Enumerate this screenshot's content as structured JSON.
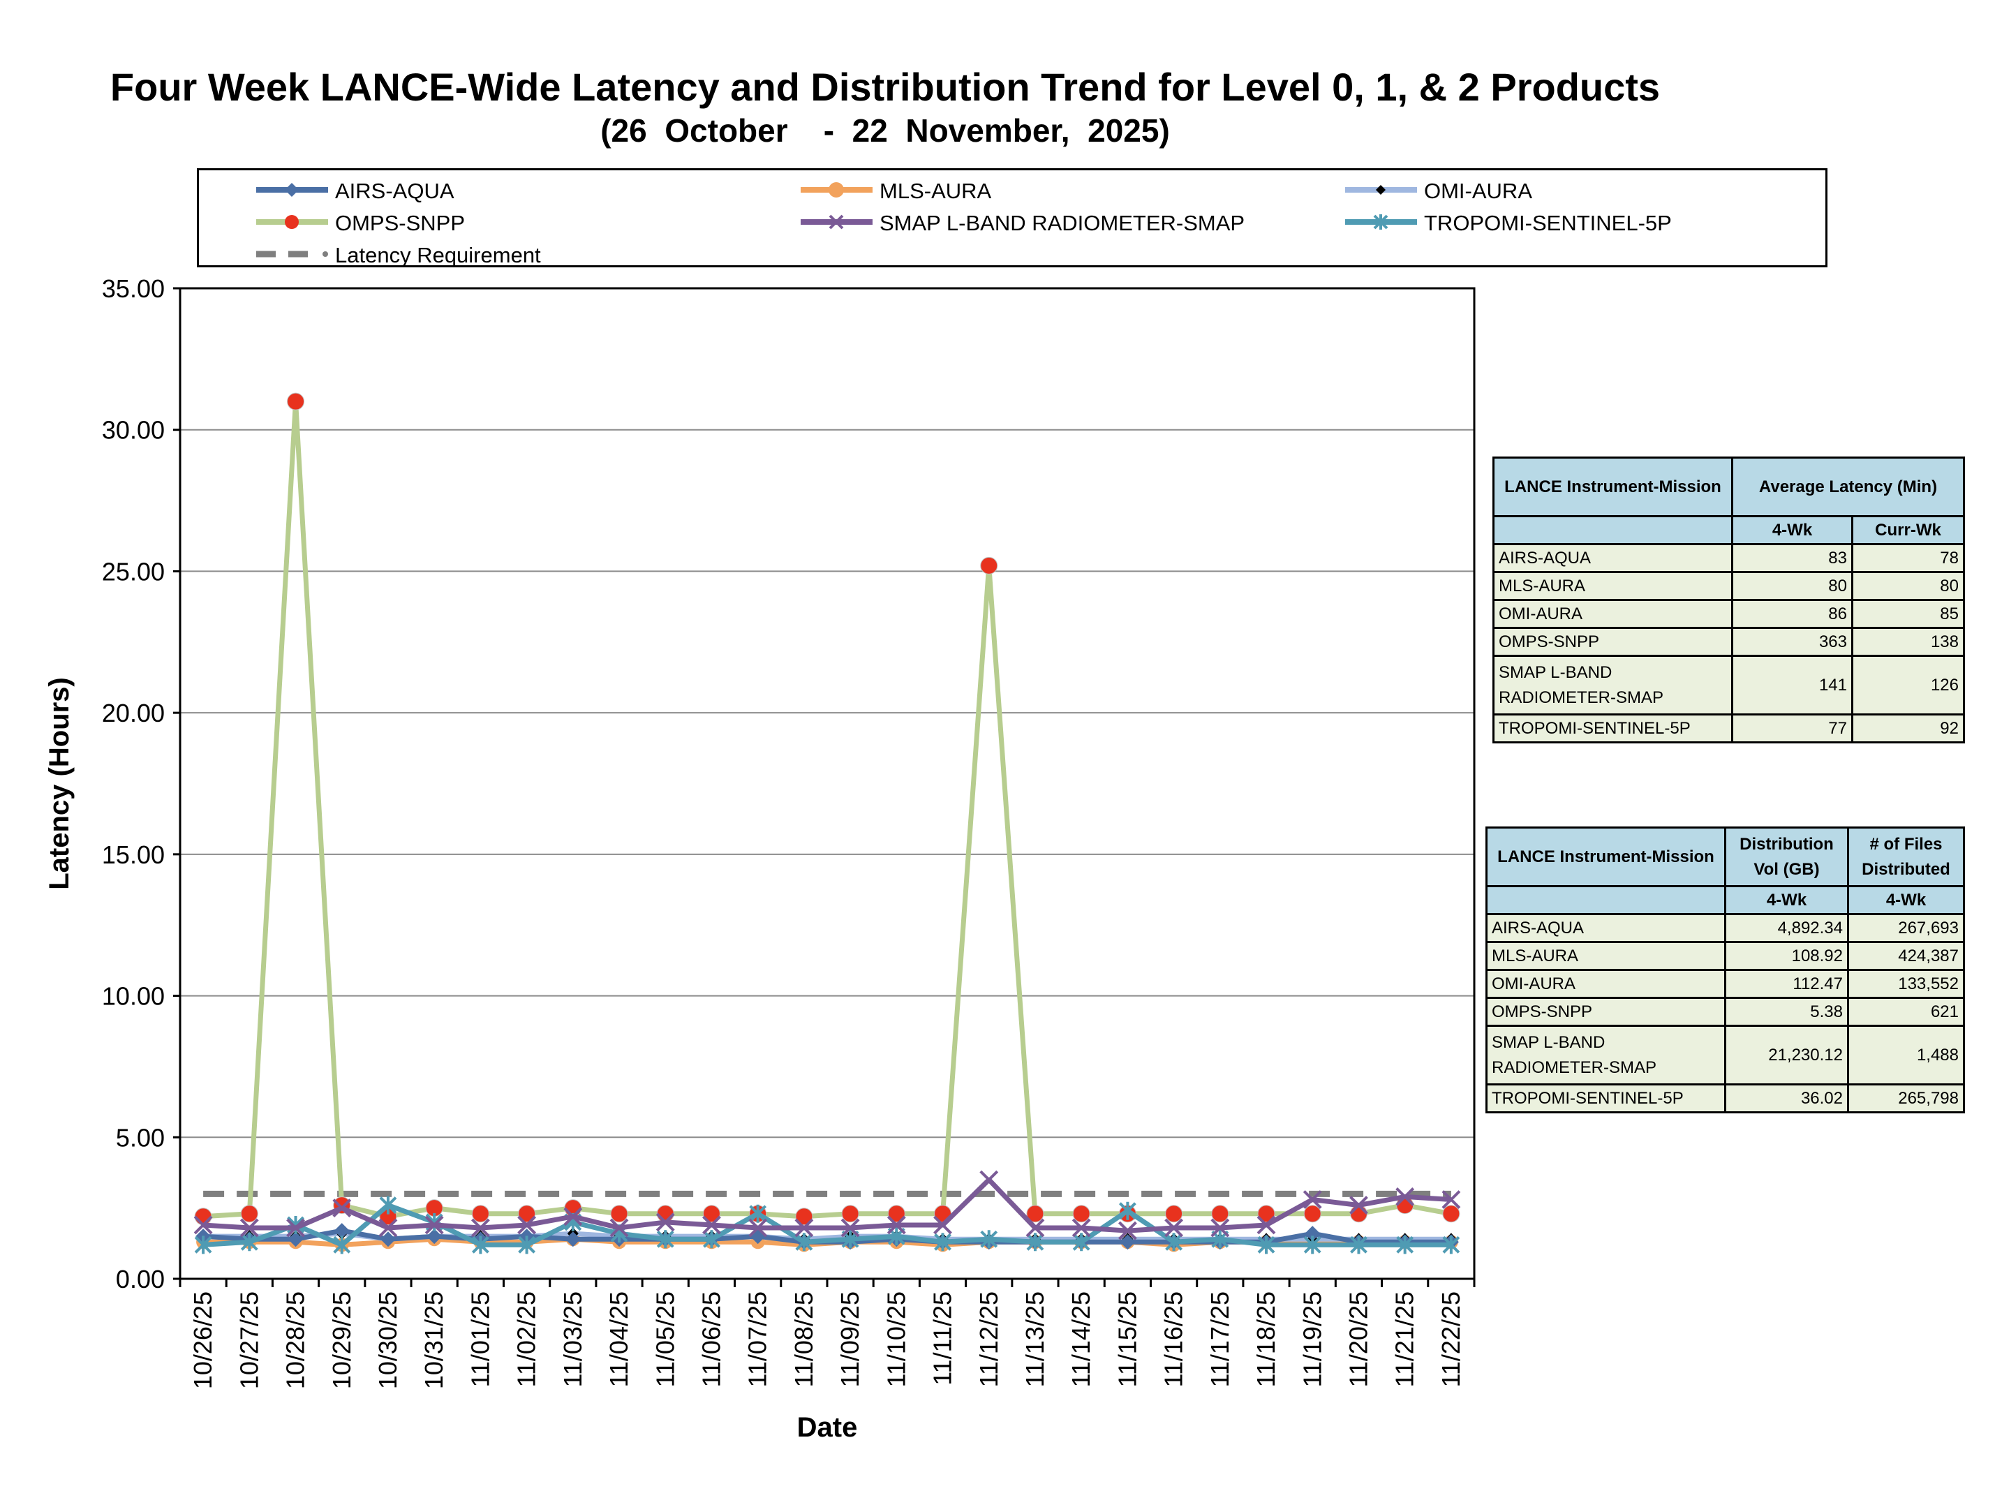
{
  "chart_data": {
    "type": "line",
    "title": "Four Week LANCE-Wide Latency and Distribution Trend for Level 0, 1, & 2 Products",
    "subtitle": "(26  October    -  22  November,  2025)",
    "xlabel": "Date",
    "ylabel": "Latency (Hours)",
    "ylim": [
      0,
      35
    ],
    "yticks": [
      "0.00",
      "5.00",
      "10.00",
      "15.00",
      "20.00",
      "25.00",
      "30.00",
      "35.00"
    ],
    "grid": "horizontal",
    "legend_placement": "top",
    "categories": [
      "10/26/25",
      "10/27/25",
      "10/28/25",
      "10/29/25",
      "10/30/25",
      "10/31/25",
      "11/01/25",
      "11/02/25",
      "11/03/25",
      "11/04/25",
      "11/05/25",
      "11/06/25",
      "11/07/25",
      "11/08/25",
      "11/09/25",
      "11/10/25",
      "11/11/25",
      "11/12/25",
      "11/13/25",
      "11/14/25",
      "11/15/25",
      "11/16/25",
      "11/17/25",
      "11/18/25",
      "11/19/25",
      "11/20/25",
      "11/21/25",
      "11/22/25"
    ],
    "series": [
      {
        "name": "AIRS-AQUA",
        "color": "#4a6fa5",
        "marker": "diamond",
        "values": [
          1.5,
          1.4,
          1.4,
          1.7,
          1.4,
          1.5,
          1.4,
          1.5,
          1.4,
          1.4,
          1.4,
          1.4,
          1.5,
          1.3,
          1.3,
          1.4,
          1.3,
          1.3,
          1.3,
          1.3,
          1.3,
          1.3,
          1.3,
          1.3,
          1.6,
          1.3,
          1.3,
          1.3
        ]
      },
      {
        "name": "MLS-AURA",
        "color": "#f2a25c",
        "marker": "circle",
        "values": [
          1.3,
          1.3,
          1.3,
          1.2,
          1.3,
          1.4,
          1.3,
          1.3,
          1.4,
          1.3,
          1.3,
          1.3,
          1.3,
          1.2,
          1.3,
          1.3,
          1.2,
          1.3,
          1.3,
          1.3,
          1.3,
          1.2,
          1.3,
          1.3,
          1.3,
          1.3,
          1.3,
          1.3
        ]
      },
      {
        "name": "OMI-AURA",
        "color": "#9fb7e0",
        "marker": "diamond-small",
        "values": [
          1.5,
          1.5,
          1.5,
          1.6,
          1.4,
          1.5,
          1.5,
          1.5,
          1.6,
          1.5,
          1.5,
          1.5,
          1.5,
          1.4,
          1.5,
          1.5,
          1.4,
          1.4,
          1.4,
          1.4,
          1.4,
          1.4,
          1.4,
          1.4,
          1.4,
          1.4,
          1.4,
          1.4
        ]
      },
      {
        "name": "OMPS-SNPP",
        "color": "#b7cd8f",
        "marker": "red-dot",
        "values": [
          2.2,
          2.3,
          31.0,
          2.6,
          2.2,
          2.5,
          2.3,
          2.3,
          2.5,
          2.3,
          2.3,
          2.3,
          2.3,
          2.2,
          2.3,
          2.3,
          2.3,
          25.2,
          2.3,
          2.3,
          2.3,
          2.3,
          2.3,
          2.3,
          2.3,
          2.3,
          2.6,
          2.3
        ]
      },
      {
        "name": "SMAP L-BAND RADIOMETER-SMAP",
        "color": "#7a5a96",
        "marker": "x",
        "values": [
          1.9,
          1.8,
          1.8,
          2.5,
          1.8,
          1.9,
          1.8,
          1.9,
          2.2,
          1.8,
          2.0,
          1.9,
          1.8,
          1.8,
          1.8,
          1.9,
          1.9,
          3.5,
          1.8,
          1.8,
          1.7,
          1.8,
          1.8,
          1.9,
          2.8,
          2.6,
          2.9,
          2.8
        ]
      },
      {
        "name": "TROPOMI-SENTINEL-5P",
        "color": "#4f9bb3",
        "marker": "star",
        "values": [
          1.2,
          1.3,
          1.9,
          1.2,
          2.6,
          2.0,
          1.2,
          1.2,
          2.0,
          1.6,
          1.4,
          1.4,
          2.3,
          1.3,
          1.4,
          1.5,
          1.3,
          1.4,
          1.3,
          1.3,
          2.4,
          1.3,
          1.4,
          1.2,
          1.2,
          1.2,
          1.2,
          1.2
        ]
      },
      {
        "name": "Latency Requirement",
        "color": "#7f7f7f",
        "style": "dashed",
        "values": [
          3,
          3,
          3,
          3,
          3,
          3,
          3,
          3,
          3,
          3,
          3,
          3,
          3,
          3,
          3,
          3,
          3,
          3,
          3,
          3,
          3,
          3,
          3,
          3,
          3,
          3,
          3,
          3
        ]
      }
    ]
  },
  "latency_table": {
    "header_col1": "LANCE Instrument-Mission",
    "header_group": "Average Latency (Min)",
    "sub_4wk": "4-Wk",
    "sub_curr": "Curr-Wk",
    "rows": [
      {
        "name": "AIRS-AQUA",
        "four_wk": "83",
        "curr_wk": "78"
      },
      {
        "name": "MLS-AURA",
        "four_wk": "80",
        "curr_wk": "80"
      },
      {
        "name": "OMI-AURA",
        "four_wk": "86",
        "curr_wk": "85"
      },
      {
        "name": "OMPS-SNPP",
        "four_wk": "363",
        "curr_wk": "138"
      },
      {
        "name": "SMAP L-BAND RADIOMETER-SMAP",
        "four_wk": "141",
        "curr_wk": "126"
      },
      {
        "name": "TROPOMI-SENTINEL-5P",
        "four_wk": "77",
        "curr_wk": "92"
      }
    ]
  },
  "distribution_table": {
    "header_col1": "LANCE Instrument-Mission",
    "header_vol": "Distribution Vol (GB)",
    "header_files": "# of Files Distributed",
    "sub_vol": "4-Wk",
    "sub_files": "4-Wk",
    "rows": [
      {
        "name": "AIRS-AQUA",
        "vol": "4,892.34",
        "files": "267,693"
      },
      {
        "name": "MLS-AURA",
        "vol": "108.92",
        "files": "424,387"
      },
      {
        "name": "OMI-AURA",
        "vol": "112.47",
        "files": "133,552"
      },
      {
        "name": "OMPS-SNPP",
        "vol": "5.38",
        "files": "621"
      },
      {
        "name": "SMAP L-BAND RADIOMETER-SMAP",
        "vol": "21,230.12",
        "files": "1,488"
      },
      {
        "name": "TROPOMI-SENTINEL-5P",
        "vol": "36.02",
        "files": "265,798"
      }
    ]
  }
}
